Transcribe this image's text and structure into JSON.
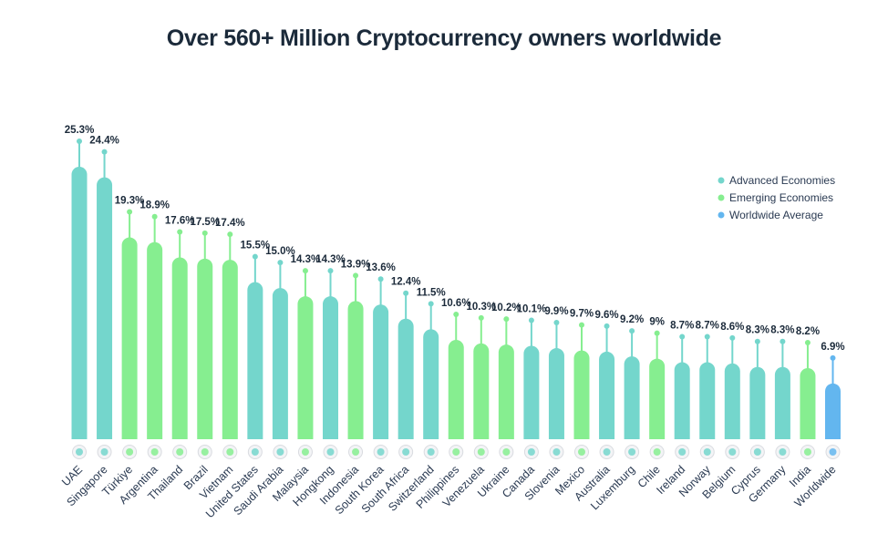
{
  "title": "Over 560+ Million Cryptocurrency owners worldwide",
  "colors": {
    "advanced": "#74d6cc",
    "emerging": "#86ee90",
    "worldwide": "#63b6ef",
    "text": "#1b2a3a"
  },
  "chart_data": {
    "type": "bar",
    "title": "Over 560+ Million Cryptocurrency owners worldwide",
    "xlabel": "",
    "ylabel": "",
    "ylim": [
      0,
      25.3
    ],
    "grid": false,
    "legend_position": "top-right",
    "legend": [
      {
        "name": "Advanced Economies",
        "group": "advanced"
      },
      {
        "name": "Emerging Economies",
        "group": "emerging"
      },
      {
        "name": "Worldwide Average",
        "group": "worldwide"
      }
    ],
    "categories": [
      "UAE",
      "Singapore",
      "Türkiye",
      "Argentina",
      "Thailand",
      "Brazil",
      "Vietnam",
      "United States",
      "Saudi Arabia",
      "Malaysia",
      "Hongkong",
      "Indonesia",
      "South Korea",
      "South Africa",
      "Switzerland",
      "Philippines",
      "Venezuela",
      "Ukraine",
      "Canada",
      "Slovenia",
      "Mexico",
      "Australia",
      "Luxemburg",
      "Chile",
      "Ireland",
      "Norway",
      "Belgium",
      "Cyprus",
      "Germany",
      "India",
      "Worldwide"
    ],
    "values": [
      25.3,
      24.4,
      19.3,
      18.9,
      17.6,
      17.5,
      17.4,
      15.5,
      15.0,
      14.3,
      14.3,
      13.9,
      13.6,
      12.4,
      11.5,
      10.6,
      10.3,
      10.2,
      10.1,
      9.9,
      9.7,
      9.6,
      9.2,
      9,
      8.7,
      8.7,
      8.6,
      8.3,
      8.3,
      8.2,
      6.9
    ],
    "labels": [
      "25.3%",
      "24.4%",
      "19.3%",
      "18.9%",
      "17.6%",
      "17.5%",
      "17.4%",
      "15.5%",
      "15.0%",
      "14.3%",
      "14.3%",
      "13.9%",
      "13.6%",
      "12.4%",
      "11.5%",
      "10.6%",
      "10.3%",
      "10.2%",
      "10.1%",
      "9.9%",
      "9.7%",
      "9.6%",
      "9.2%",
      "9%",
      "8.7%",
      "8.7%",
      "8.6%",
      "8.3%",
      "8.3%",
      "8.2%",
      "6.9%"
    ],
    "groups": [
      "advanced",
      "advanced",
      "emerging",
      "emerging",
      "emerging",
      "emerging",
      "emerging",
      "advanced",
      "advanced",
      "emerging",
      "advanced",
      "emerging",
      "advanced",
      "advanced",
      "advanced",
      "emerging",
      "emerging",
      "emerging",
      "advanced",
      "advanced",
      "emerging",
      "advanced",
      "advanced",
      "emerging",
      "advanced",
      "advanced",
      "advanced",
      "advanced",
      "advanced",
      "emerging",
      "worldwide"
    ]
  }
}
